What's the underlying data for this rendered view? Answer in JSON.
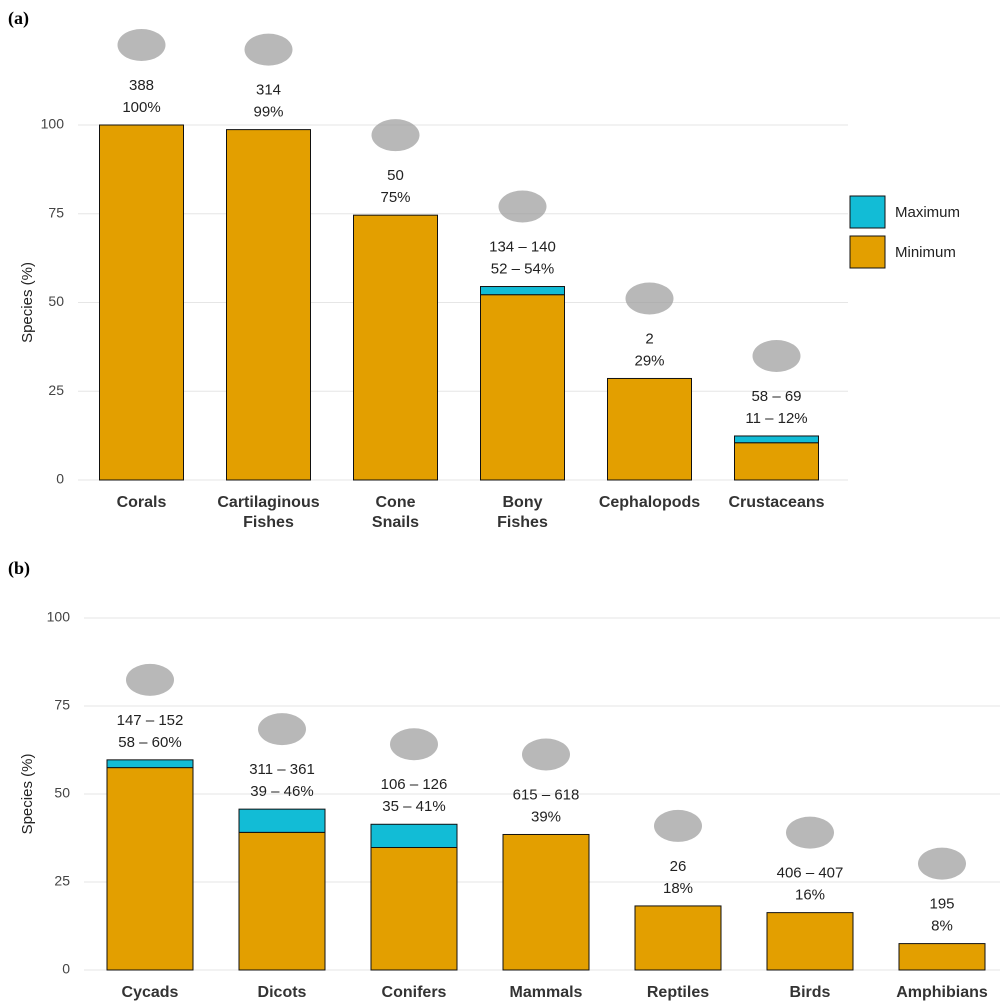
{
  "chart_data": [
    {
      "type": "bar",
      "tag": "(a)",
      "y_label": "Species (%)",
      "stacked": true,
      "categories": [
        "Corals",
        "Cartilaginous Fishes",
        "Cone Snails",
        "Bony Fishes",
        "Cephalopods",
        "Crustaceans"
      ],
      "series": [
        {
          "name": "Minimum",
          "color": "#e39f00",
          "values": [
            100,
            98.7,
            74.6,
            52.2,
            28.6,
            10.5
          ]
        },
        {
          "name": "Maximum",
          "color": "#12bcd6",
          "values": [
            0,
            0,
            0,
            2.3,
            0,
            1.9
          ]
        }
      ],
      "labels": [
        {
          "count": "388",
          "percent": "100%"
        },
        {
          "count": "314",
          "percent": "99%"
        },
        {
          "count": "50",
          "percent": "75%"
        },
        {
          "count": "134 – 140",
          "percent": "52 – 54%"
        },
        {
          "count": "2",
          "percent": "29%"
        },
        {
          "count": "58 – 69",
          "percent": "11 – 12%"
        }
      ],
      "ylim": [
        0,
        100
      ],
      "yticks": [
        0,
        25,
        50,
        75,
        100
      ],
      "grid": true,
      "legend": "right"
    },
    {
      "type": "bar",
      "tag": "(b)",
      "y_label": "Species (%)",
      "stacked": true,
      "categories": [
        "Cycads",
        "Dicots",
        "Conifers",
        "Mammals",
        "Reptiles",
        "Birds",
        "Amphibians"
      ],
      "series": [
        {
          "name": "Minimum",
          "color": "#e39f00",
          "values": [
            57.5,
            39.1,
            34.8,
            38.5,
            18.2,
            16.3,
            7.5
          ]
        },
        {
          "name": "Maximum",
          "color": "#12bcd6",
          "values": [
            2.2,
            6.6,
            6.6,
            0,
            0,
            0,
            0
          ]
        }
      ],
      "labels": [
        {
          "count": "147 – 152",
          "percent": "58 – 60%"
        },
        {
          "count": "311 – 361",
          "percent": "39 – 46%"
        },
        {
          "count": "106 – 126",
          "percent": "35 – 41%"
        },
        {
          "count": "615 – 618",
          "percent": "39%"
        },
        {
          "count": "26",
          "percent": "18%"
        },
        {
          "count": "406 – 407",
          "percent": "16%"
        },
        {
          "count": "195",
          "percent": "8%"
        }
      ],
      "ylim": [
        0,
        100
      ],
      "yticks": [
        0,
        25,
        50,
        75,
        100
      ],
      "grid": true,
      "legend": false
    }
  ]
}
